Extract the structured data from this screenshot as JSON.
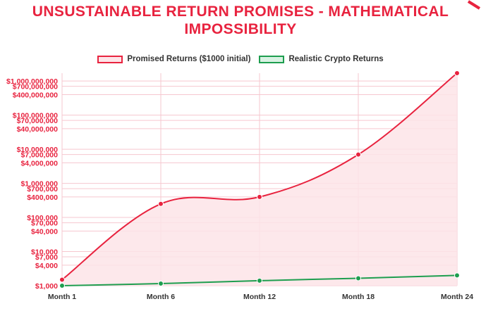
{
  "chart_data": {
    "type": "line",
    "title": "UNSUSTAINABLE RETURN PROMISES - MATHEMATICAL IMPOSSIBILITY",
    "categories": [
      "Month 1",
      "Month 6",
      "Month 12",
      "Month 18",
      "Month 24"
    ],
    "series": [
      {
        "name": "Promised Returns ($1000 initial)",
        "values": [
          1500,
          250000,
          400000,
          7000000,
          1700000000
        ],
        "line_color": "#e8233f",
        "fill_color": "#fde4e8",
        "filled": true
      },
      {
        "name": "Realistic Crypto Returns",
        "values": [
          1000,
          1150,
          1400,
          1650,
          2000
        ],
        "line_color": "#1e9e4f",
        "fill_color": "#d9f2e3",
        "filled": false
      }
    ],
    "y_scale": "log",
    "ylim": [
      1000,
      1700000000
    ],
    "y_ticks": [
      {
        "value": 1000,
        "label": "$1,000"
      },
      {
        "value": 4000,
        "label": "$4,000"
      },
      {
        "value": 7000,
        "label": "$7,000"
      },
      {
        "value": 10000,
        "label": "$10,000"
      },
      {
        "value": 40000,
        "label": "$40,000"
      },
      {
        "value": 70000,
        "label": "$70,000"
      },
      {
        "value": 100000,
        "label": "$100,000"
      },
      {
        "value": 400000,
        "label": "$400,000"
      },
      {
        "value": 700000,
        "label": "$700,000"
      },
      {
        "value": 1000000,
        "label": "$1,000,000"
      },
      {
        "value": 4000000,
        "label": "$4,000,000"
      },
      {
        "value": 7000000,
        "label": "$7,000,000"
      },
      {
        "value": 10000000,
        "label": "$10,000,000"
      },
      {
        "value": 40000000,
        "label": "$40,000,000"
      },
      {
        "value": 70000000,
        "label": "$70,000,000"
      },
      {
        "value": 100000000,
        "label": "$100,000,000"
      },
      {
        "value": 400000000,
        "label": "$400,000,000"
      },
      {
        "value": 700000000,
        "label": "$700,000,000"
      },
      {
        "value": 1000000000,
        "label": "$1,000,000,000"
      }
    ],
    "grid": true,
    "legend_position": "top"
  },
  "colors": {
    "title": "#e8233f",
    "grid": "#f6c7cf",
    "y_tick_text": "#e8233f",
    "x_tick_text": "#333333"
  }
}
